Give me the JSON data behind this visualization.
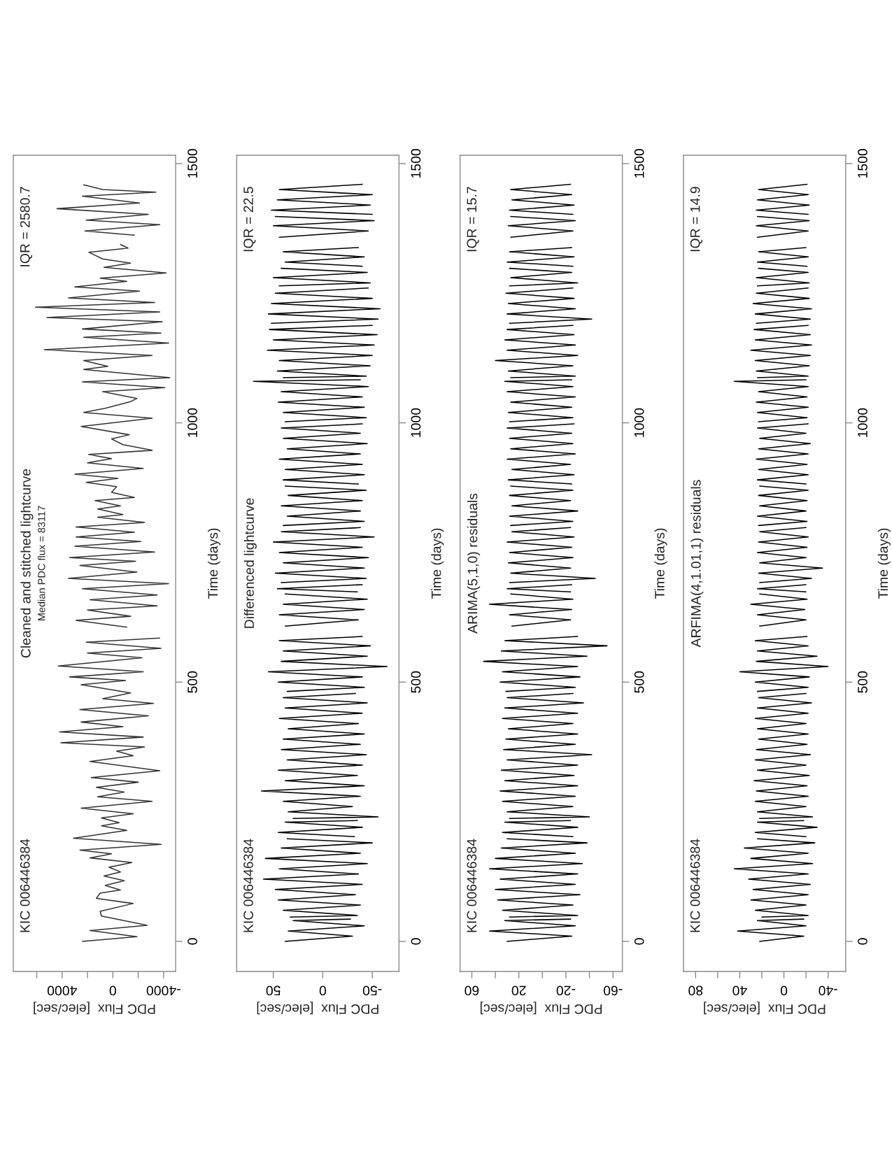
{
  "chart_data": [
    {
      "type": "line",
      "orientation": "horizontal",
      "title": "Cleaned and stitched lightcurve",
      "subtitle": "Median PDC flux = 83117",
      "xlabel": "PDC Flux  [elec/sec]",
      "ylabel": "Time (days)",
      "annotations": [
        "KIC 006446384",
        "IQR = 2580.7"
      ],
      "color": "#333333",
      "ylim": [
        -58,
        1516
      ],
      "yticks": [
        0,
        500,
        1000,
        1500
      ],
      "xlim": [
        7850,
        -4950
      ],
      "xticks": [
        {
          "value": 6000,
          "label": null
        },
        4000,
        {
          "value": 2000,
          "label": null
        },
        0,
        {
          "value": -2000,
          "label": null
        },
        -4000
      ],
      "x": [
        0,
        9,
        21,
        31,
        49,
        58,
        73,
        83,
        93,
        99,
        108,
        117,
        126,
        134,
        143,
        152,
        161,
        169,
        176,
        187,
        199,
        214,
        223,
        229,
        238,
        246,
        257,
        270,
        279,
        288,
        297,
        307,
        316,
        329,
        347,
        358,
        367,
        375,
        383,
        394,
        404,
        414,
        423,
        435,
        447,
        459,
        468,
        479,
        495,
        503,
        510,
        520,
        531,
        547,
        556,
        565,
        577,
        585,
        595,
        606,
        619,
        627,
        639,
        647,
        659,
        668,
        680,
        690,
        700,
        712,
        725,
        733,
        740,
        751,
        762,
        771,
        780,
        789,
        799,
        808,
        818,
        823,
        834,
        840,
        850,
        856,
        866,
        877,
        885,
        893,
        901,
        912,
        923,
        931,
        939,
        947,
        958,
        969,
        977,
        993,
        1009,
        1020,
        1028,
        1041,
        1047,
        1060,
        1068,
        1079,
        1087,
        1103,
        1109,
        1120,
        1130,
        1141,
        1154,
        1165,
        1173,
        1181,
        1195,
        1203,
        1214,
        1223,
        1232,
        1241,
        1254,
        1262,
        1273,
        1279,
        1289,
        1300,
        1308,
        1316,
        1329,
        1337,
        1344,
        1350,
        1362,
        1370,
        1382,
        1391,
        1402,
        1413,
        1424,
        1437,
        1445,
        1450,
        1459
      ],
      "values": [
        2400,
        -1900,
        1800,
        -2700,
        900,
        1000,
        -1600,
        1300,
        1000,
        -600,
        600,
        -900,
        700,
        -600,
        300,
        -1500,
        1800,
        100,
        2600,
        -3800,
        3100,
        -1100,
        900,
        -500,
        900,
        -1600,
        2500,
        -3100,
        1200,
        -900,
        1300,
        -2000,
        1700,
        -3700,
        1800,
        -1600,
        -300,
        -2500,
        4100,
        -2400,
        4200,
        -800,
        2500,
        -2800,
        2600,
        -3200,
        800,
        -1400,
        2500,
        -1000,
        3400,
        -2400,
        4300,
        -2300,
        2000,
        -3800,
        2100,
        -3700,
        null,
        -1100,
        2900,
        -1400,
        2000,
        -3500,
        1800,
        -3500,
        2400,
        -4400,
        3500,
        -1900,
        2600,
        -1800,
        3400,
        -3300,
        3000,
        -2200,
        2900,
        -1700,
        2900,
        -2500,
        1200,
        -800,
        1200,
        -600,
        1400,
        -1700,
        100,
        -300,
        2100,
        -400,
        3000,
        -2400,
        2000,
        100,
        1900,
        -3100,
        -800,
        100,
        -1300,
        2500,
        -3100,
        2300,
        600,
        -1400,
        -1900,
        800,
        -4100,
        2400,
        -4500,
        2300,
        400,
        2300,
        -3100,
        5400,
        -4400,
        2300,
        -3800,
        2400,
        -3900,
        5200,
        -3700,
        6100,
        -3300,
        3500,
        -2100,
        3000,
        -1100,
        1000,
        -4200,
        700,
        -1400,
        800,
        1900,
        -1200,
        -600,
        null,
        -1700,
        2200,
        -3700,
        2100,
        -2800,
        4400,
        -2100,
        2400,
        -3400,
        800,
        2300
      ]
    },
    {
      "type": "line",
      "orientation": "horizontal",
      "title": "Differenced lightcurve",
      "xlabel": "PDC Flux  [elec/sec]",
      "ylabel": "Time (days)",
      "annotations": [
        "KIC 006446384",
        "IQR = 22.5"
      ],
      "color": "#000000",
      "ylim": [
        -58,
        1516
      ],
      "yticks": [
        0,
        500,
        1000,
        1500
      ],
      "xlim": [
        87,
        -77
      ],
      "xticks": [
        50,
        0,
        -50
      ],
      "x": [
        0,
        10,
        20,
        30,
        40,
        43,
        45,
        47,
        50,
        60,
        70,
        80,
        90,
        100,
        110,
        120,
        130,
        140,
        150,
        160,
        170,
        180,
        190,
        198,
        200,
        202,
        210,
        220,
        230,
        233,
        235,
        237,
        240,
        250,
        260,
        270,
        280,
        290,
        300,
        310,
        320,
        330,
        340,
        350,
        360,
        370,
        380,
        390,
        400,
        410,
        420,
        430,
        440,
        450,
        460,
        470,
        478,
        480,
        482,
        490,
        500,
        510,
        520,
        530,
        540,
        550,
        560,
        570,
        580,
        588,
        598,
        608,
        620,
        630,
        640,
        650,
        660,
        670,
        672,
        674,
        680,
        688,
        690,
        692,
        700,
        710,
        720,
        730,
        740,
        750,
        760,
        770,
        780,
        790,
        798,
        800,
        802,
        810,
        820,
        830,
        840,
        850,
        860,
        870,
        878,
        880,
        882,
        890,
        900,
        910,
        920,
        930,
        940,
        950,
        960,
        970,
        980,
        990,
        998,
        1000,
        1002,
        1010,
        1020,
        1030,
        1040,
        1050,
        1060,
        1070,
        1080,
        1083,
        1085,
        1087,
        1090,
        1100,
        1110,
        1120,
        1130,
        1140,
        1150,
        1160,
        1170,
        1180,
        1188,
        1190,
        1192,
        1200,
        1210,
        1220,
        1230,
        1240,
        1250,
        1260,
        1262,
        1264,
        1270,
        1280,
        1290,
        1298,
        1300,
        1302,
        1310,
        1320,
        1330,
        1338,
        1348,
        1358,
        1370,
        1380,
        1390,
        1398,
        1400,
        1402,
        1410,
        1420,
        1430,
        1440,
        1450,
        1460
      ],
      "values": [
        38,
        -30,
        35,
        -42,
        30,
        -28,
        null,
        33,
        -35,
        40,
        -38,
        45,
        -33,
        48,
        -40,
        60,
        -36,
        44,
        -45,
        58,
        -38,
        42,
        -50,
        36,
        null,
        -32,
        45,
        -40,
        38,
        -35,
        null,
        30,
        -56,
        35,
        -30,
        40,
        -38,
        62,
        -42,
        38,
        -35,
        45,
        -40,
        36,
        -44,
        42,
        -38,
        40,
        -42,
        35,
        -36,
        44,
        -40,
        38,
        -45,
        40,
        -33,
        null,
        36,
        -42,
        45,
        -40,
        55,
        -65,
        42,
        -45,
        40,
        -48,
        44,
        -40,
        null,
        38,
        -36,
        44,
        -42,
        40,
        -45,
        38,
        null,
        -35,
        46,
        -40,
        null,
        42,
        -44,
        48,
        -42,
        40,
        -46,
        44,
        -40,
        50,
        -52,
        42,
        -38,
        null,
        40,
        -42,
        36,
        -38,
        42,
        -40,
        35,
        -44,
        38,
        null,
        -36,
        40,
        -42,
        38,
        -40,
        44,
        -38,
        36,
        -45,
        40,
        -38,
        42,
        -40,
        null,
        38,
        -44,
        40,
        -42,
        45,
        -40,
        42,
        -46,
        70,
        -38,
        null,
        40,
        -44,
        46,
        -48,
        44,
        -50,
        56,
        -52,
        50,
        -55,
        54,
        -50,
        null,
        52,
        -56,
        55,
        -58,
        52,
        -50,
        48,
        -46,
        null,
        44,
        -48,
        50,
        -45,
        42,
        null,
        -40,
        38,
        -42,
        40,
        -36,
        null,
        44,
        -46,
        50,
        -52,
        48,
        null,
        -50,
        52,
        -48,
        46,
        -50,
        44,
        -40
      ]
    },
    {
      "type": "line",
      "orientation": "horizontal",
      "title": "ARIMA(5,1,0) residuals",
      "xlabel": "PDC Flux  [elec/sec]",
      "ylabel": "Time (days)",
      "annotations": [
        "KIC 006446384",
        "IQR = 15.7"
      ],
      "color": "#000000",
      "ylim": [
        -58,
        1516
      ],
      "yticks": [
        0,
        500,
        1000,
        1500
      ],
      "xlim": [
        70,
        -68
      ],
      "xticks": [
        60,
        {
          "value": 40,
          "label": null
        },
        20,
        {
          "value": 0,
          "label": null
        },
        -20,
        {
          "value": -40,
          "label": null
        },
        -60
      ],
      "x": [
        0,
        10,
        20,
        30,
        40,
        43,
        45,
        47,
        50,
        60,
        70,
        80,
        90,
        100,
        110,
        120,
        130,
        140,
        150,
        160,
        170,
        180,
        190,
        198,
        200,
        202,
        210,
        220,
        230,
        233,
        235,
        237,
        240,
        250,
        260,
        270,
        280,
        290,
        300,
        310,
        320,
        330,
        340,
        350,
        360,
        370,
        380,
        390,
        400,
        410,
        420,
        430,
        440,
        450,
        460,
        470,
        478,
        480,
        482,
        490,
        500,
        510,
        520,
        530,
        540,
        550,
        560,
        570,
        580,
        588,
        598,
        608,
        620,
        630,
        640,
        650,
        660,
        670,
        672,
        674,
        680,
        688,
        690,
        692,
        700,
        710,
        720,
        730,
        740,
        750,
        760,
        770,
        780,
        790,
        798,
        800,
        802,
        810,
        820,
        830,
        840,
        850,
        860,
        870,
        878,
        880,
        882,
        890,
        900,
        910,
        920,
        930,
        940,
        950,
        960,
        970,
        980,
        990,
        998,
        1000,
        1002,
        1010,
        1020,
        1030,
        1040,
        1050,
        1060,
        1070,
        1080,
        1083,
        1085,
        1087,
        1090,
        1100,
        1110,
        1120,
        1130,
        1140,
        1150,
        1160,
        1170,
        1180,
        1188,
        1190,
        1192,
        1200,
        1210,
        1220,
        1230,
        1240,
        1250,
        1260,
        1262,
        1264,
        1270,
        1280,
        1290,
        1298,
        1300,
        1302,
        1310,
        1320,
        1330,
        1338,
        1348,
        1358,
        1370,
        1380,
        1390,
        1398,
        1400,
        1402,
        1410,
        1420,
        1430,
        1440,
        1450,
        1460
      ],
      "values": [
        30,
        -25,
        45,
        -28,
        32,
        -24,
        null,
        28,
        -30,
        34,
        -26,
        38,
        -32,
        40,
        -28,
        36,
        -30,
        45,
        -34,
        40,
        -28,
        35,
        -38,
        30,
        null,
        -26,
        34,
        -30,
        32,
        -24,
        null,
        28,
        -40,
        30,
        -26,
        34,
        -28,
        36,
        -30,
        32,
        -27,
        35,
        -30,
        30,
        -42,
        33,
        -28,
        31,
        -30,
        29,
        -26,
        34,
        -30,
        32,
        -35,
        30,
        -26,
        null,
        31,
        -28,
        36,
        -32,
        34,
        -30,
        50,
        -38,
        35,
        -55,
        32,
        -30,
        null,
        26,
        -24,
        28,
        -25,
        45,
        -26,
        27,
        null,
        -24,
        30,
        -25,
        null,
        28,
        -45,
        27,
        -24,
        29,
        -26,
        28,
        -25,
        30,
        -27,
        26,
        -24,
        null,
        27,
        -26,
        28,
        -30,
        26,
        -24,
        28,
        -26,
        27,
        null,
        -25,
        29,
        -27,
        26,
        -24,
        30,
        -28,
        27,
        -26,
        28,
        -25,
        30,
        -27,
        null,
        28,
        -26,
        29,
        -25,
        27,
        -28,
        30,
        -26,
        32,
        -25,
        null,
        27,
        -28,
        29,
        -26,
        40,
        -30,
        30,
        -28,
        32,
        -27,
        30,
        -26,
        null,
        28,
        -42,
        30,
        -28,
        29,
        -27,
        31,
        -26,
        null,
        28,
        -30,
        27,
        -25,
        28,
        null,
        -26,
        30,
        -27,
        28,
        -25,
        null,
        27,
        -26,
        29,
        -28,
        27,
        null,
        -26,
        28,
        -27,
        26,
        -25,
        27,
        -24
      ]
    },
    {
      "type": "line",
      "orientation": "horizontal",
      "title": "ARFIMA(4,1.01,1) residuals",
      "xlabel": "PDC Flux  [elec/sec]",
      "ylabel": "Time (days)",
      "annotations": [
        "KIC 006446384",
        "IQR = 14.9"
      ],
      "color": "#000000",
      "ylim": [
        -58,
        1516
      ],
      "yticks": [
        0,
        500,
        1000,
        1500
      ],
      "xlim": [
        91,
        -56
      ],
      "xticks": [
        80,
        {
          "value": 60,
          "label": null
        },
        40,
        {
          "value": 20,
          "label": null
        },
        0,
        {
          "value": -20,
          "label": null
        },
        -40
      ],
      "x": [
        0,
        10,
        20,
        30,
        40,
        43,
        45,
        47,
        50,
        60,
        70,
        80,
        90,
        100,
        110,
        120,
        130,
        140,
        150,
        160,
        170,
        180,
        190,
        198,
        200,
        202,
        210,
        220,
        230,
        233,
        235,
        237,
        240,
        250,
        260,
        270,
        280,
        290,
        300,
        310,
        320,
        330,
        340,
        350,
        360,
        370,
        380,
        390,
        400,
        410,
        420,
        430,
        440,
        450,
        460,
        470,
        478,
        480,
        482,
        490,
        500,
        510,
        520,
        530,
        540,
        550,
        560,
        570,
        580,
        588,
        598,
        608,
        620,
        630,
        640,
        650,
        660,
        670,
        672,
        674,
        680,
        688,
        690,
        692,
        700,
        710,
        720,
        730,
        740,
        750,
        760,
        770,
        780,
        790,
        798,
        800,
        802,
        810,
        820,
        830,
        840,
        850,
        860,
        870,
        878,
        880,
        882,
        890,
        900,
        910,
        920,
        930,
        940,
        950,
        960,
        970,
        980,
        990,
        998,
        1000,
        1002,
        1010,
        1020,
        1030,
        1040,
        1050,
        1060,
        1070,
        1080,
        1083,
        1085,
        1087,
        1090,
        1100,
        1110,
        1120,
        1130,
        1140,
        1150,
        1160,
        1170,
        1180,
        1188,
        1190,
        1192,
        1200,
        1210,
        1220,
        1230,
        1240,
        1250,
        1260,
        1262,
        1264,
        1270,
        1280,
        1290,
        1298,
        1300,
        1302,
        1310,
        1320,
        1330,
        1338,
        1348,
        1358,
        1370,
        1380,
        1390,
        1398,
        1400,
        1402,
        1410,
        1420,
        1430,
        1440,
        1450,
        1460
      ],
      "values": [
        22,
        -18,
        42,
        -20,
        24,
        -18,
        null,
        20,
        -22,
        26,
        -20,
        30,
        -22,
        28,
        -24,
        32,
        -22,
        45,
        -26,
        30,
        -22,
        36,
        -28,
        24,
        null,
        -20,
        26,
        -30,
        24,
        -18,
        null,
        22,
        -26,
        24,
        -20,
        26,
        -22,
        25,
        -21,
        27,
        -23,
        24,
        -20,
        26,
        -24,
        25,
        -21,
        23,
        -22,
        24,
        -20,
        26,
        -22,
        24,
        -25,
        23,
        -20,
        null,
        24,
        -22,
        26,
        -23,
        40,
        -40,
        25,
        -30,
        24,
        -22,
        26,
        -21,
        null,
        22,
        -20,
        24,
        -19,
        30,
        -21,
        22,
        null,
        -20,
        24,
        -20,
        null,
        22,
        -25,
        23,
        -35,
        22,
        -20,
        24,
        -21,
        23,
        -22,
        22,
        -20,
        null,
        23,
        -21,
        24,
        -20,
        22,
        -21,
        23,
        -22,
        22,
        null,
        -20,
        24,
        -22,
        23,
        -21,
        25,
        -22,
        23,
        -24,
        22,
        -20,
        24,
        -22,
        null,
        23,
        -21,
        24,
        -22,
        25,
        -21,
        23,
        -22,
        45,
        -20,
        null,
        24,
        -22,
        25,
        -23,
        26,
        -24,
        30,
        -25,
        26,
        -24,
        27,
        -22,
        null,
        25,
        -24,
        26,
        -25,
        28,
        -23,
        25,
        -22,
        null,
        24,
        -23,
        25,
        -22,
        23,
        null,
        -21,
        24,
        -22,
        23,
        -20,
        null,
        24,
        -22,
        25,
        -23,
        24,
        null,
        -22,
        25,
        -23,
        24,
        -22,
        23,
        -21
      ]
    }
  ]
}
